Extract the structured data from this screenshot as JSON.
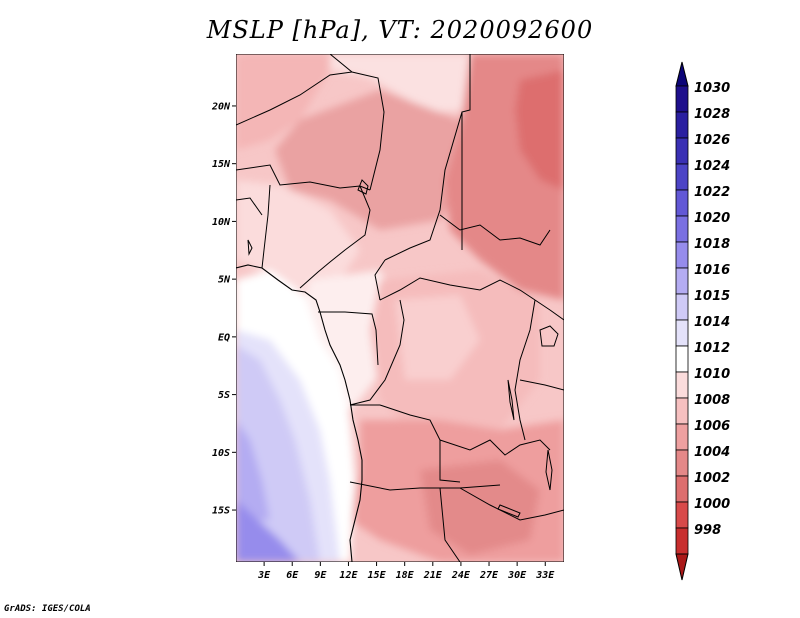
{
  "title": "MSLP [hPa], VT: 2020092600",
  "credit": "GrADS: IGES/COLA",
  "map": {
    "lat_ticks": [
      {
        "lat": 20,
        "label": "20N"
      },
      {
        "lat": 15,
        "label": "15N"
      },
      {
        "lat": 10,
        "label": "10N"
      },
      {
        "lat": 5,
        "label": "5N"
      },
      {
        "lat": 0,
        "label": "EQ"
      },
      {
        "lat": -5,
        "label": "5S"
      },
      {
        "lat": -10,
        "label": "10S"
      },
      {
        "lat": -15,
        "label": "15S"
      }
    ],
    "lon_ticks": [
      {
        "lon": 3,
        "label": "3E"
      },
      {
        "lon": 6,
        "label": "6E"
      },
      {
        "lon": 9,
        "label": "9E"
      },
      {
        "lon": 12,
        "label": "12E"
      },
      {
        "lon": 15,
        "label": "15E"
      },
      {
        "lon": 18,
        "label": "18E"
      },
      {
        "lon": 21,
        "label": "21E"
      },
      {
        "lon": 24,
        "label": "24E"
      },
      {
        "lon": 27,
        "label": "27E"
      },
      {
        "lon": 30,
        "label": "30E"
      },
      {
        "lon": 33,
        "label": "33E"
      }
    ],
    "lon_range": [
      0,
      35
    ],
    "lat_range": [
      -19.5,
      24.5
    ]
  },
  "colorbar": {
    "levels": [
      {
        "label": "1030",
        "color": "#1e0f8c"
      },
      {
        "label": "1028",
        "color": "#2a1fa0"
      },
      {
        "label": "1026",
        "color": "#3a30b4"
      },
      {
        "label": "1024",
        "color": "#4c44c6"
      },
      {
        "label": "1022",
        "color": "#6258d6"
      },
      {
        "label": "1020",
        "color": "#7a70e2"
      },
      {
        "label": "1018",
        "color": "#968cec"
      },
      {
        "label": "1016",
        "color": "#b4acf2"
      },
      {
        "label": "1015",
        "color": "#cfcaf6"
      },
      {
        "label": "1014",
        "color": "#e4e2fa"
      },
      {
        "label": "1012",
        "color": "#ffffff"
      },
      {
        "label": "1010",
        "color": "#fbdcdc"
      },
      {
        "label": "1008",
        "color": "#f6c0c0"
      },
      {
        "label": "1006",
        "color": "#eea0a0"
      },
      {
        "label": "1004",
        "color": "#e48888"
      },
      {
        "label": "1002",
        "color": "#dd6e6e"
      },
      {
        "label": "1000",
        "color": "#d84a4a"
      },
      {
        "label": "998",
        "color": "#c82e2e"
      }
    ],
    "top_color": "#0c0478",
    "bottom_color": "#aa1818"
  }
}
